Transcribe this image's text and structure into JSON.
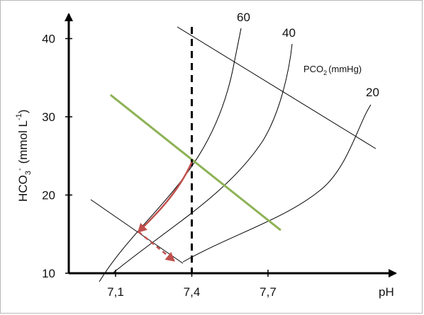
{
  "chart_data": {
    "type": "line",
    "xlabel": "pH",
    "ylabel_main": "HCO",
    "ylabel_sub": "3",
    "ylabel_sup": "-",
    "ylabel_unit": "(mmol L",
    "ylabel_unit_sup": "-1",
    "ylabel_close": ")",
    "xlim": [
      7.0,
      7.9
    ],
    "ylim": [
      10,
      41
    ],
    "x_ticks": [
      {
        "value": 7.1,
        "label": "7,1"
      },
      {
        "value": 7.4,
        "label": "7,4"
      },
      {
        "value": 7.7,
        "label": "7,7"
      }
    ],
    "y_ticks": [
      {
        "value": 10,
        "label": "10"
      },
      {
        "value": 20,
        "label": "20"
      },
      {
        "value": 30,
        "label": "30"
      },
      {
        "value": 40,
        "label": "40"
      }
    ],
    "legend_title_main": "PCO",
    "legend_title_sub": "2",
    "legend_title_unit": "(mmHg)",
    "isopleths": [
      {
        "label": "60",
        "pco2": 60
      },
      {
        "label": "40",
        "pco2": 40
      },
      {
        "label": "20",
        "pco2": 20
      }
    ],
    "buffer_line": {
      "x": [
        7.08,
        7.75
      ],
      "y": [
        32.8,
        15.5
      ],
      "color": "#8db255"
    },
    "reference_ph": 7.4,
    "metabolic_arrow": {
      "from": [
        7.4,
        24.2
      ],
      "to": [
        7.19,
        15.3
      ],
      "color": "#c0504d"
    },
    "compensation_arrow": {
      "from": [
        7.19,
        15.3
      ],
      "to": [
        7.33,
        11.6
      ],
      "color": "#c0504d"
    },
    "grid": false
  },
  "colors": {
    "axis": "#000000",
    "isopleth": "#000000",
    "buffer": "#8db255",
    "arrow": "#c0504d"
  }
}
